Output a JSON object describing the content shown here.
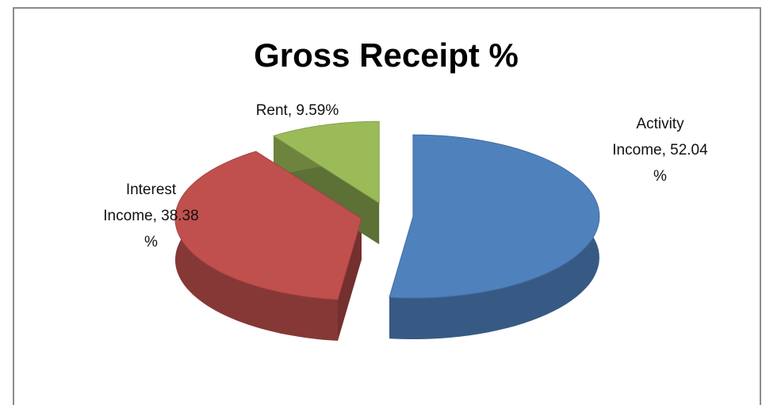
{
  "chart_data": {
    "type": "pie",
    "title": "Gross Receipt %",
    "values": [
      52.04,
      38.38,
      9.59
    ],
    "value_labels": [
      "Activity Income, 52.04 %",
      "Interest Income, 38.38 %",
      "Rent, 9.59%"
    ],
    "colors": [
      "#4f81bd",
      "#c0504d",
      "#9bbb59"
    ],
    "exploded": true,
    "three_d": true
  }
}
